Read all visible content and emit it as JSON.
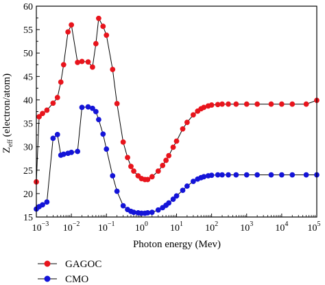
{
  "chart_data": {
    "type": "line",
    "xscale": "log",
    "xlim": [
      0.001,
      100000
    ],
    "ylim": [
      15,
      60
    ],
    "xlabel": "Photon energy (Mev)",
    "ylabel_main": "Z",
    "ylabel_sub": "eff",
    "ylabel_rest": " (electron/atom)",
    "x_ticks": [
      {
        "value": 0.001,
        "base": "10",
        "exp": "−3"
      },
      {
        "value": 0.01,
        "base": "10",
        "exp": "−2"
      },
      {
        "value": 0.1,
        "base": "10",
        "exp": "−1"
      },
      {
        "value": 1,
        "base": "10",
        "exp": "0"
      },
      {
        "value": 10,
        "base": "10",
        "exp": "1"
      },
      {
        "value": 100,
        "base": "10",
        "exp": "2"
      },
      {
        "value": 1000,
        "base": "10",
        "exp": "3"
      },
      {
        "value": 10000,
        "base": "10",
        "exp": "4"
      },
      {
        "value": 100000,
        "base": "10",
        "exp": "5"
      }
    ],
    "y_ticks": [
      15,
      20,
      25,
      30,
      35,
      40,
      45,
      50,
      55,
      60
    ],
    "legend_position": "bottom-left",
    "series": [
      {
        "name": "GAGOC",
        "color": "#e8141c",
        "points": [
          [
            0.001,
            22.5
          ],
          [
            0.0012,
            36.4
          ],
          [
            0.0015,
            37.1
          ],
          [
            0.002,
            37.8
          ],
          [
            0.003,
            39.3
          ],
          [
            0.004,
            40.5
          ],
          [
            0.005,
            43.8
          ],
          [
            0.006,
            47.5
          ],
          [
            0.008,
            54.5
          ],
          [
            0.01,
            56.0
          ],
          [
            0.015,
            48.0
          ],
          [
            0.02,
            48.2
          ],
          [
            0.03,
            48.1
          ],
          [
            0.04,
            47.0
          ],
          [
            0.05,
            52.0
          ],
          [
            0.06,
            57.4
          ],
          [
            0.08,
            55.7
          ],
          [
            0.1,
            53.8
          ],
          [
            0.15,
            46.5
          ],
          [
            0.2,
            39.2
          ],
          [
            0.3,
            31.0
          ],
          [
            0.4,
            27.7
          ],
          [
            0.5,
            25.8
          ],
          [
            0.6,
            24.8
          ],
          [
            0.8,
            23.8
          ],
          [
            1,
            23.2
          ],
          [
            1.25,
            23.0
          ],
          [
            1.5,
            23.0
          ],
          [
            2,
            23.6
          ],
          [
            3,
            24.8
          ],
          [
            4,
            26.0
          ],
          [
            5,
            27.1
          ],
          [
            6,
            28.1
          ],
          [
            8,
            29.9
          ],
          [
            10,
            31.2
          ],
          [
            15,
            33.8
          ],
          [
            20,
            35.2
          ],
          [
            30,
            36.8
          ],
          [
            40,
            37.6
          ],
          [
            50,
            38.1
          ],
          [
            60,
            38.4
          ],
          [
            80,
            38.7
          ],
          [
            100,
            38.9
          ],
          [
            150,
            39.0
          ],
          [
            200,
            39.1
          ],
          [
            300,
            39.1
          ],
          [
            500,
            39.1
          ],
          [
            1000,
            39.1
          ],
          [
            2000,
            39.1
          ],
          [
            5000,
            39.1
          ],
          [
            10000,
            39.1
          ],
          [
            20000,
            39.1
          ],
          [
            50000,
            39.1
          ],
          [
            100000,
            39.9
          ]
        ]
      },
      {
        "name": "CMO",
        "color": "#1414d8",
        "points": [
          [
            0.001,
            16.7
          ],
          [
            0.0012,
            17.2
          ],
          [
            0.0015,
            17.6
          ],
          [
            0.002,
            18.2
          ],
          [
            0.003,
            31.8
          ],
          [
            0.004,
            32.6
          ],
          [
            0.005,
            28.2
          ],
          [
            0.006,
            28.4
          ],
          [
            0.008,
            28.6
          ],
          [
            0.01,
            28.8
          ],
          [
            0.015,
            29.0
          ],
          [
            0.02,
            38.4
          ],
          [
            0.03,
            38.5
          ],
          [
            0.04,
            38.2
          ],
          [
            0.05,
            37.5
          ],
          [
            0.06,
            35.8
          ],
          [
            0.08,
            32.7
          ],
          [
            0.1,
            29.5
          ],
          [
            0.15,
            23.8
          ],
          [
            0.2,
            20.5
          ],
          [
            0.3,
            17.4
          ],
          [
            0.4,
            16.6
          ],
          [
            0.5,
            16.2
          ],
          [
            0.6,
            16.0
          ],
          [
            0.8,
            15.9
          ],
          [
            1,
            15.8
          ],
          [
            1.25,
            15.8
          ],
          [
            1.5,
            15.9
          ],
          [
            2,
            16.0
          ],
          [
            3,
            16.5
          ],
          [
            4,
            17.0
          ],
          [
            5,
            17.5
          ],
          [
            6,
            18.0
          ],
          [
            8,
            18.8
          ],
          [
            10,
            19.5
          ],
          [
            15,
            20.7
          ],
          [
            20,
            21.6
          ],
          [
            30,
            22.6
          ],
          [
            40,
            23.1
          ],
          [
            50,
            23.4
          ],
          [
            60,
            23.6
          ],
          [
            80,
            23.8
          ],
          [
            100,
            23.9
          ],
          [
            150,
            24.0
          ],
          [
            200,
            24.0
          ],
          [
            300,
            24.0
          ],
          [
            500,
            24.0
          ],
          [
            1000,
            24.0
          ],
          [
            2000,
            24.0
          ],
          [
            5000,
            24.0
          ],
          [
            10000,
            24.0
          ],
          [
            20000,
            24.0
          ],
          [
            50000,
            24.0
          ],
          [
            100000,
            24.0
          ]
        ]
      }
    ]
  }
}
